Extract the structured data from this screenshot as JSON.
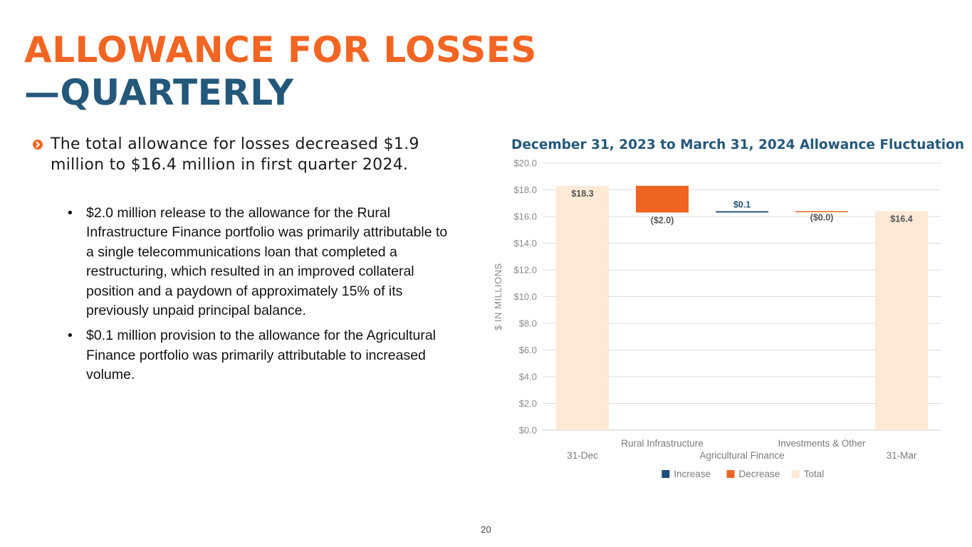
{
  "slide": {
    "title_line1": "ALLOWANCE FOR LOSSES",
    "title_line2": "—QUARTERLY",
    "lead": "The total allowance for losses decreased $1.9 million to $16.4 million in first quarter 2024.",
    "bullets": [
      "$2.0 million release to the allowance for the Rural Infrastructure Finance portfolio was primarily attributable to a single telecommunications loan that completed a restructuring, which resulted in an improved collateral position and a paydown of approximately 15% of its previously unpaid principal balance.",
      "$0.1 million provision to the allowance for the Agricultural Finance portfolio was primarily attributable to increased volume."
    ],
    "bullet_symbol": "•",
    "page_number": "20"
  },
  "colors": {
    "accent": "#f26522",
    "navy": "#24587a",
    "increase": "#1f4e79",
    "decrease": "#ee6420",
    "total": "#fde9d5"
  },
  "chart_data": {
    "type": "bar",
    "subtype": "waterfall",
    "title": "December 31, 2023 to March 31, 2024 Allowance Fluctuation",
    "ylabel": "$ IN MILLIONS",
    "xlabel": "",
    "ylim": [
      0,
      20
    ],
    "yticks": [
      0,
      2,
      4,
      6,
      8,
      10,
      12,
      14,
      16,
      18,
      20
    ],
    "ytick_labels": [
      "$0.0",
      "$2.0",
      "$4.0",
      "$6.0",
      "$8.0",
      "$10.0",
      "$12.0",
      "$14.0",
      "$16.0",
      "$18.0",
      "$20.0"
    ],
    "grid": true,
    "categories": [
      "31-Dec",
      "Rural Infrastructure",
      "Agricultural Finance",
      "Investments & Other",
      "31-Mar"
    ],
    "points": [
      {
        "category": "31-Dec",
        "kind": "total",
        "start": 0,
        "end": 18.3,
        "label": "$18.3"
      },
      {
        "category": "Rural Infrastructure",
        "kind": "decrease",
        "start": 18.3,
        "end": 16.3,
        "label": "($2.0)"
      },
      {
        "category": "Agricultural Finance",
        "kind": "increase",
        "start": 16.3,
        "end": 16.4,
        "label": "$0.1"
      },
      {
        "category": "Investments & Other",
        "kind": "decrease",
        "start": 16.4,
        "end": 16.4,
        "label": "($0.0)"
      },
      {
        "category": "31-Mar",
        "kind": "total",
        "start": 0,
        "end": 16.4,
        "label": "$16.4"
      }
    ],
    "legend": [
      {
        "name": "Increase",
        "kind": "increase"
      },
      {
        "name": "Decrease",
        "kind": "decrease"
      },
      {
        "name": "Total",
        "kind": "total"
      }
    ],
    "legend_position": "bottom"
  }
}
